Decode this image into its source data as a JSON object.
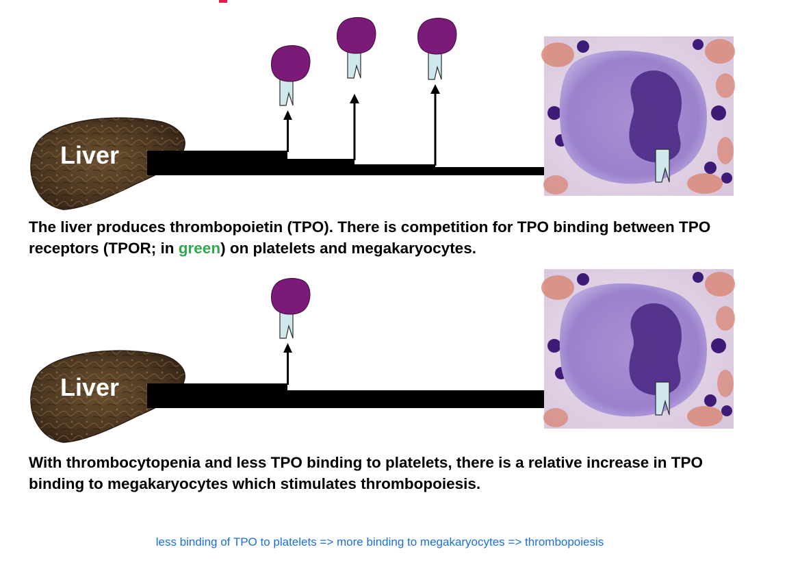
{
  "colors": {
    "platelet": "#7c1a7a",
    "receptor": "#cfe8ec",
    "arrow": "#000000",
    "green_highlight": "#2fa84f",
    "note": "#1a6fe0",
    "header_fragment": "#e8184a"
  },
  "panel_top": {
    "liver_label": "Liver",
    "caption_before": "The liver produces thrombopoietin (TPO). There is competition for TPO binding between TPO receptors (TPOR; in ",
    "caption_green": "green",
    "caption_after": ") on platelets and megakaryocytes."
  },
  "panel_bottom": {
    "liver_label": "Liver",
    "caption": "With thrombocytopenia and less TPO binding to platelets, there is a relative increase in TPO binding to megakaryocytes which stimulates thrombopoiesis."
  },
  "note": "less binding of TPO to platelets => more binding to megakaryocytes => thrombopoiesis"
}
